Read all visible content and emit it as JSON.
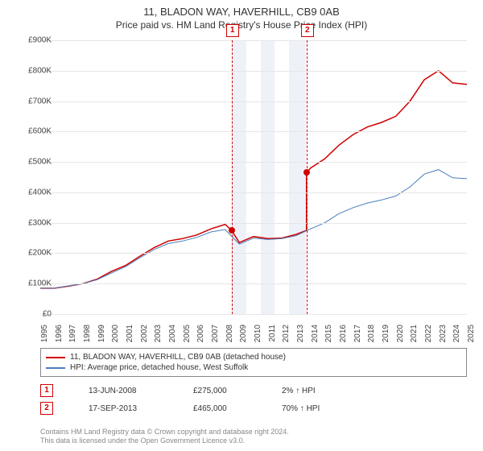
{
  "title": "11, BLADON WAY, HAVERHILL, CB9 0AB",
  "subtitle": "Price paid vs. HM Land Registry's House Price Index (HPI)",
  "chart": {
    "type": "line",
    "xlim": [
      1995,
      2025
    ],
    "ylim": [
      0,
      900
    ],
    "yticks": [
      0,
      100,
      200,
      300,
      400,
      500,
      600,
      700,
      800,
      900
    ],
    "ytick_labels": [
      "£0",
      "£100K",
      "£200K",
      "£300K",
      "£400K",
      "£500K",
      "£600K",
      "£700K",
      "£800K",
      "£900K"
    ],
    "xticks": [
      1995,
      1996,
      1997,
      1998,
      1999,
      2000,
      2001,
      2002,
      2003,
      2004,
      2005,
      2006,
      2007,
      2008,
      2009,
      2010,
      2011,
      2012,
      2013,
      2014,
      2015,
      2016,
      2017,
      2018,
      2019,
      2020,
      2021,
      2022,
      2023,
      2024,
      2025
    ],
    "grid_color": "#e6e6e6",
    "background_color": "#ffffff",
    "shaded_bands": [
      {
        "from": 2008.45,
        "to": 2009.5,
        "color": "#eef2f8"
      },
      {
        "from": 2010.5,
        "to": 2011.5,
        "color": "#eef2f8"
      },
      {
        "from": 2012.5,
        "to": 2013.7,
        "color": "#eef2f8"
      }
    ],
    "series": [
      {
        "name": "property",
        "label": "11, BLADON WAY, HAVERHILL, CB9 0AB (detached house)",
        "color": "#d00000",
        "width": 1.5,
        "data": [
          [
            1995,
            85
          ],
          [
            1996,
            85
          ],
          [
            1997,
            92
          ],
          [
            1998,
            100
          ],
          [
            1999,
            115
          ],
          [
            2000,
            140
          ],
          [
            2001,
            160
          ],
          [
            2002,
            190
          ],
          [
            2003,
            218
          ],
          [
            2004,
            240
          ],
          [
            2005,
            248
          ],
          [
            2006,
            260
          ],
          [
            2007,
            280
          ],
          [
            2008,
            295
          ],
          [
            2008.45,
            275
          ],
          [
            2008.45,
            275
          ],
          [
            2009,
            235
          ],
          [
            2010,
            255
          ],
          [
            2011,
            248
          ],
          [
            2012,
            250
          ],
          [
            2013,
            262
          ],
          [
            2013.72,
            275
          ],
          [
            2013.72,
            465
          ],
          [
            2014,
            480
          ],
          [
            2015,
            510
          ],
          [
            2016,
            555
          ],
          [
            2017,
            590
          ],
          [
            2018,
            615
          ],
          [
            2019,
            630
          ],
          [
            2020,
            650
          ],
          [
            2021,
            700
          ],
          [
            2022,
            770
          ],
          [
            2023,
            800
          ],
          [
            2024,
            760
          ],
          [
            2025,
            755
          ]
        ]
      },
      {
        "name": "hpi",
        "label": "HPI: Average price, detached house, West Suffolk",
        "color": "#4a7ebb",
        "width": 1,
        "data": [
          [
            1995,
            85
          ],
          [
            1996,
            85
          ],
          [
            1997,
            93
          ],
          [
            1998,
            100
          ],
          [
            1999,
            113
          ],
          [
            2000,
            135
          ],
          [
            2001,
            156
          ],
          [
            2002,
            185
          ],
          [
            2003,
            212
          ],
          [
            2004,
            232
          ],
          [
            2005,
            240
          ],
          [
            2006,
            252
          ],
          [
            2007,
            270
          ],
          [
            2008,
            278
          ],
          [
            2009,
            230
          ],
          [
            2010,
            250
          ],
          [
            2011,
            245
          ],
          [
            2012,
            248
          ],
          [
            2013,
            258
          ],
          [
            2014,
            280
          ],
          [
            2015,
            300
          ],
          [
            2016,
            330
          ],
          [
            2017,
            350
          ],
          [
            2018,
            365
          ],
          [
            2019,
            375
          ],
          [
            2020,
            388
          ],
          [
            2021,
            418
          ],
          [
            2022,
            460
          ],
          [
            2023,
            475
          ],
          [
            2024,
            448
          ],
          [
            2025,
            445
          ]
        ]
      }
    ],
    "markers": [
      {
        "id": "1",
        "x": 2008.45,
        "y": 275,
        "dot_color": "#d00000"
      },
      {
        "id": "2",
        "x": 2013.72,
        "y": 465,
        "dot_color": "#d00000"
      }
    ]
  },
  "transactions": [
    {
      "id": "1",
      "date": "13-JUN-2008",
      "price": "£275,000",
      "delta": "2% ↑ HPI"
    },
    {
      "id": "2",
      "date": "17-SEP-2013",
      "price": "£465,000",
      "delta": "70% ↑ HPI"
    }
  ],
  "footer_line1": "Contains HM Land Registry data © Crown copyright and database right 2024.",
  "footer_line2": "This data is licensed under the Open Government Licence v3.0."
}
